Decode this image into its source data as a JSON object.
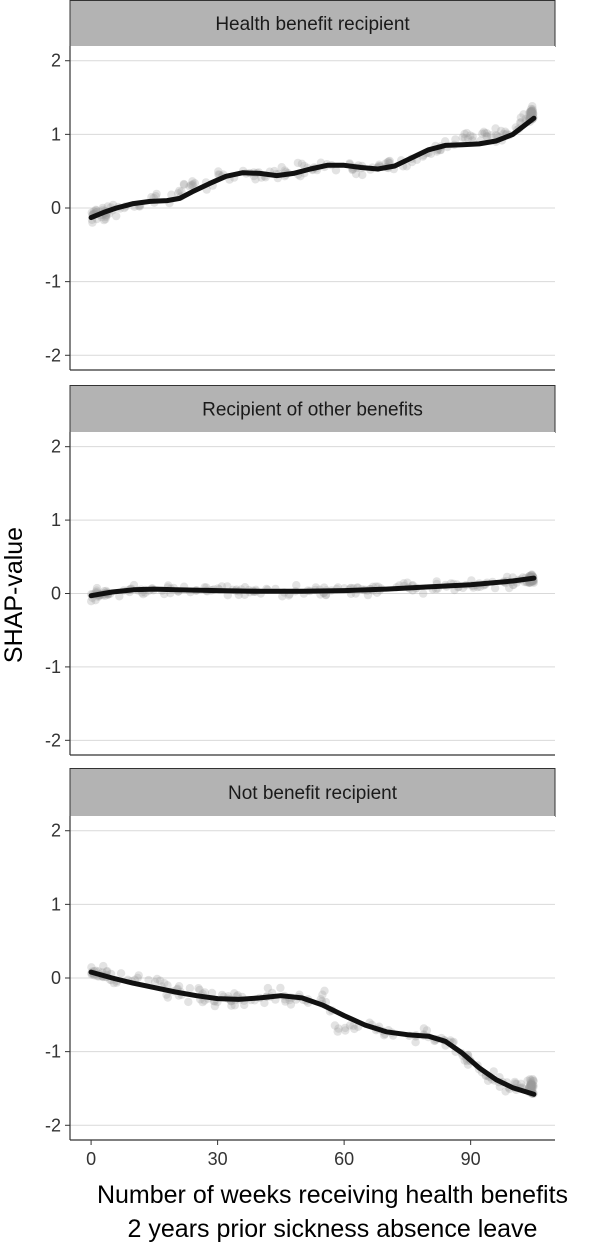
{
  "chart_data": {
    "type": "scatter",
    "xlabel_lines": [
      "Number of weeks receiving health benefits",
      "2 years prior sickness absence leave"
    ],
    "ylabel": "SHAP-value",
    "xlim": [
      -5,
      110
    ],
    "ylim": [
      -2.2,
      2.2
    ],
    "x_ticks": [
      0,
      30,
      60,
      90
    ],
    "y_ticks": [
      -2,
      -1,
      0,
      1,
      2
    ],
    "grid": true,
    "colors": {
      "points": "#9a9a9a",
      "smooth": "#111111",
      "strip": "#b3b3b3",
      "grid": "#d9d9d9"
    },
    "panels": [
      {
        "title": "Health benefit recipient",
        "smooth": [
          [
            0,
            -0.13
          ],
          [
            3,
            -0.06
          ],
          [
            6,
            0.0
          ],
          [
            10,
            0.06
          ],
          [
            14,
            0.09
          ],
          [
            18,
            0.1
          ],
          [
            21,
            0.13
          ],
          [
            24,
            0.22
          ],
          [
            28,
            0.33
          ],
          [
            32,
            0.43
          ],
          [
            36,
            0.48
          ],
          [
            40,
            0.47
          ],
          [
            44,
            0.44
          ],
          [
            48,
            0.47
          ],
          [
            52,
            0.53
          ],
          [
            56,
            0.58
          ],
          [
            60,
            0.58
          ],
          [
            64,
            0.55
          ],
          [
            68,
            0.53
          ],
          [
            72,
            0.57
          ],
          [
            76,
            0.68
          ],
          [
            80,
            0.79
          ],
          [
            84,
            0.85
          ],
          [
            88,
            0.86
          ],
          [
            92,
            0.87
          ],
          [
            96,
            0.91
          ],
          [
            100,
            1.0
          ],
          [
            105,
            1.22
          ]
        ],
        "scatter_band": [
          [
            0,
            -0.13
          ],
          [
            5,
            -0.02
          ],
          [
            10,
            0.05
          ],
          [
            16,
            0.1
          ],
          [
            20,
            0.12
          ],
          [
            22,
            0.3
          ],
          [
            28,
            0.36
          ],
          [
            32,
            0.43
          ],
          [
            36,
            0.48
          ],
          [
            42,
            0.44
          ],
          [
            46,
            0.46
          ],
          [
            52,
            0.55
          ],
          [
            58,
            0.58
          ],
          [
            64,
            0.55
          ],
          [
            68,
            0.55
          ],
          [
            72,
            0.58
          ],
          [
            78,
            0.72
          ],
          [
            84,
            0.86
          ],
          [
            88,
            0.98
          ],
          [
            94,
            0.99
          ],
          [
            100,
            1.03
          ],
          [
            105,
            1.3
          ]
        ],
        "band_spread": 0.09
      },
      {
        "title": "Recipient of other benefits",
        "smooth": [
          [
            0,
            -0.03
          ],
          [
            5,
            0.02
          ],
          [
            10,
            0.05
          ],
          [
            15,
            0.06
          ],
          [
            20,
            0.05
          ],
          [
            30,
            0.04
          ],
          [
            40,
            0.03
          ],
          [
            50,
            0.03
          ],
          [
            60,
            0.04
          ],
          [
            70,
            0.06
          ],
          [
            80,
            0.09
          ],
          [
            90,
            0.12
          ],
          [
            100,
            0.17
          ],
          [
            105,
            0.21
          ]
        ],
        "scatter_band": [
          [
            0,
            -0.03
          ],
          [
            10,
            0.04
          ],
          [
            20,
            0.05
          ],
          [
            40,
            0.03
          ],
          [
            60,
            0.04
          ],
          [
            80,
            0.09
          ],
          [
            95,
            0.14
          ],
          [
            105,
            0.2
          ]
        ],
        "band_spread": 0.07
      },
      {
        "title": "Not benefit recipient",
        "smooth": [
          [
            0,
            0.08
          ],
          [
            5,
            0.0
          ],
          [
            10,
            -0.07
          ],
          [
            15,
            -0.13
          ],
          [
            20,
            -0.19
          ],
          [
            25,
            -0.24
          ],
          [
            30,
            -0.28
          ],
          [
            35,
            -0.29
          ],
          [
            40,
            -0.27
          ],
          [
            45,
            -0.24
          ],
          [
            50,
            -0.27
          ],
          [
            55,
            -0.37
          ],
          [
            60,
            -0.51
          ],
          [
            65,
            -0.64
          ],
          [
            70,
            -0.73
          ],
          [
            75,
            -0.77
          ],
          [
            80,
            -0.79
          ],
          [
            84,
            -0.86
          ],
          [
            88,
            -1.02
          ],
          [
            92,
            -1.22
          ],
          [
            96,
            -1.38
          ],
          [
            100,
            -1.49
          ],
          [
            105,
            -1.58
          ]
        ],
        "scatter_band": [
          [
            0,
            0.07
          ],
          [
            8,
            -0.02
          ],
          [
            16,
            -0.05
          ],
          [
            18,
            -0.2
          ],
          [
            30,
            -0.28
          ],
          [
            45,
            -0.26
          ],
          [
            56,
            -0.3
          ],
          [
            58,
            -0.65
          ],
          [
            70,
            -0.74
          ],
          [
            80,
            -0.76
          ],
          [
            86,
            -0.9
          ],
          [
            92,
            -1.25
          ],
          [
            98,
            -1.45
          ],
          [
            105,
            -1.5
          ]
        ],
        "band_spread": 0.1
      }
    ]
  }
}
